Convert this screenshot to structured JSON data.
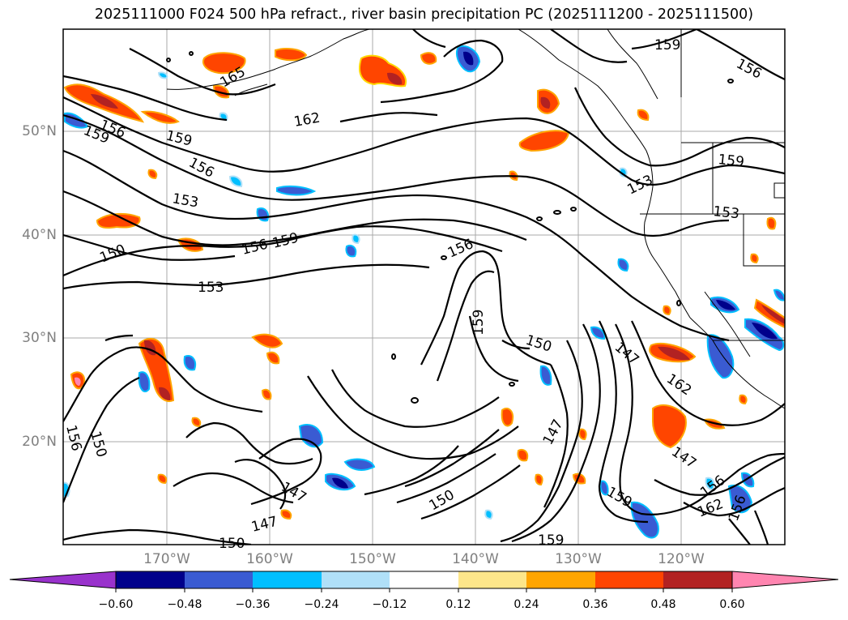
{
  "title": "2025111000 F024 500 hPa refract., river basin precipitation PC (2025111200 - 2025111500)",
  "lat_labels": [
    "50°N",
    "40°N",
    "30°N",
    "20°N"
  ],
  "lon_labels": [
    "170°W",
    "160°W",
    "150°W",
    "140°W",
    "130°W",
    "120°W"
  ],
  "contour_labels": [
    "159",
    "156",
    "165",
    "162",
    "159",
    "156",
    "159",
    "156",
    "153",
    "150",
    "156",
    "159",
    "153",
    "156",
    "153",
    "153",
    "159",
    "159",
    "150",
    "147",
    "162",
    "147",
    "147",
    "150",
    "147",
    "150",
    "159",
    "156",
    "162",
    "156",
    "159",
    "156",
    "147"
  ],
  "colorbar": {
    "ticks": [
      "−0.60",
      "−0.48",
      "−0.36",
      "−0.24",
      "−0.12",
      "0.12",
      "0.24",
      "0.36",
      "0.48",
      "0.60"
    ],
    "colors": {
      "lt_neg060": "#9932cc",
      "neg060_neg048": "#00008b",
      "neg048_neg036": "#3a5bd2",
      "neg036_neg024": "#00bfff",
      "neg024_neg012": "#b0e0f8",
      "neg012_012": "#ffffff",
      "p012_p024": "#fde68a",
      "p024_p036": "#ffa500",
      "p036_p048": "#ff4500",
      "p048_p060": "#b22222",
      "gt_p060": "#ff85b0"
    }
  }
}
